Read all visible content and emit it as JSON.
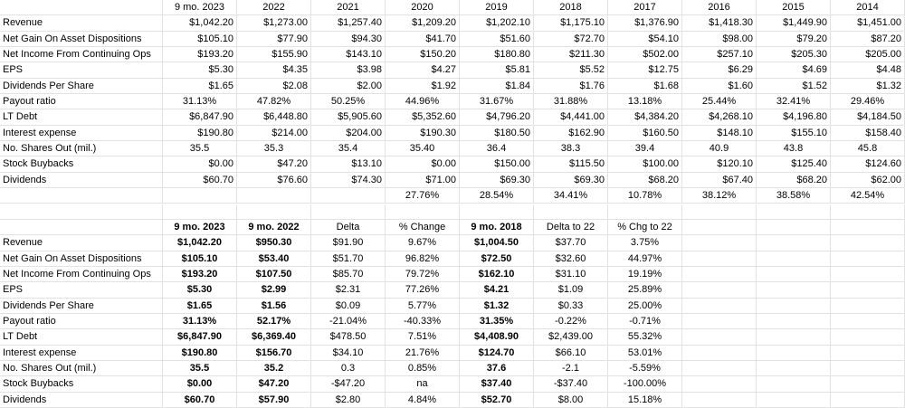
{
  "top_table": {
    "header": [
      "9 mo. 2023",
      "2022",
      "2021",
      "2020",
      "2019",
      "2018",
      "2017",
      "2016",
      "2015",
      "2014"
    ],
    "rows": [
      {
        "label": "Revenue",
        "cells": [
          "$1,042.20",
          "$1,273.00",
          "$1,257.40",
          "$1,209.20",
          "$1,202.10",
          "$1,175.10",
          "$1,376.90",
          "$1,418.30",
          "$1,449.90",
          "$1,451.00"
        ]
      },
      {
        "label": "Net Gain On Asset Dispositions",
        "cells": [
          "$105.10",
          "$77.90",
          "$94.30",
          "$41.70",
          "$51.60",
          "$72.70",
          "$54.10",
          "$98.00",
          "$79.20",
          "$87.20"
        ]
      },
      {
        "label": "Net Income From Continuing Ops",
        "cells": [
          "$193.20",
          "$155.90",
          "$143.10",
          "$150.20",
          "$180.80",
          "$211.30",
          "$502.00",
          "$257.10",
          "$205.30",
          "$205.00"
        ]
      },
      {
        "label": "EPS",
        "cells": [
          "$5.30",
          "$4.35",
          "$3.98",
          "$4.27",
          "$5.81",
          "$5.52",
          "$12.75",
          "$6.29",
          "$4.69",
          "$4.48"
        ]
      },
      {
        "label": "Dividends Per Share",
        "cells": [
          "$1.65",
          "$2.08",
          "$2.00",
          "$1.92",
          "$1.84",
          "$1.76",
          "$1.68",
          "$1.60",
          "$1.52",
          "$1.32"
        ]
      },
      {
        "label": "Payout ratio",
        "cells": [
          "31.13%",
          "47.82%",
          "50.25%",
          "44.96%",
          "31.67%",
          "31.88%",
          "13.18%",
          "25.44%",
          "32.41%",
          "29.46%"
        ]
      },
      {
        "label": "LT Debt",
        "cells": [
          "$6,847.90",
          "$6,448.80",
          "$5,905.60",
          "$5,352.60",
          "$4,796.20",
          "$4,441.00",
          "$4,384.20",
          "$4,268.10",
          "$4,196.80",
          "$4,184.50"
        ]
      },
      {
        "label": "Interest expense",
        "cells": [
          "$190.80",
          "$214.00",
          "$204.00",
          "$190.30",
          "$180.50",
          "$162.90",
          "$160.50",
          "$148.10",
          "$155.10",
          "$158.40"
        ]
      },
      {
        "label": "No. Shares Out (mil.)",
        "cells": [
          "35.5",
          "35.3",
          "35.4",
          "35.40",
          "36.4",
          "38.3",
          "39.4",
          "40.9",
          "43.8",
          "45.8"
        ]
      },
      {
        "label": "Stock Buybacks",
        "cells": [
          "$0.00",
          "$47.20",
          "$13.10",
          "$0.00",
          "$150.00",
          "$115.50",
          "$100.00",
          "$120.10",
          "$125.40",
          "$124.60"
        ]
      },
      {
        "label": "Dividends",
        "cells": [
          "$60.70",
          "$76.60",
          "$74.30",
          "$71.00",
          "$69.30",
          "$69.30",
          "$68.20",
          "$67.40",
          "$68.20",
          "$62.00"
        ]
      }
    ],
    "extra_row": [
      null,
      null,
      null,
      "27.76%",
      "28.54%",
      "34.41%",
      "10.78%",
      "38.12%",
      "38.58%",
      "42.54%"
    ]
  },
  "bottom_table": {
    "header": [
      "9 mo. 2023",
      "9 mo. 2022",
      "Delta",
      "% Change",
      "9 mo. 2018",
      "Delta to 22",
      "% Chg to 22"
    ],
    "rows": [
      {
        "label": "Revenue",
        "cells": [
          "$1,042.20",
          "$950.30",
          "$91.90",
          "9.67%",
          "$1,004.50",
          "$37.70",
          "3.75%"
        ]
      },
      {
        "label": "Net Gain On Asset Dispositions",
        "cells": [
          "$105.10",
          "$53.40",
          "$51.70",
          "96.82%",
          "$72.50",
          "$32.60",
          "44.97%"
        ]
      },
      {
        "label": "Net Income From Continuing Ops",
        "cells": [
          "$193.20",
          "$107.50",
          "$85.70",
          "79.72%",
          "$162.10",
          "$31.10",
          "19.19%"
        ]
      },
      {
        "label": "EPS",
        "cells": [
          "$5.30",
          "$2.99",
          "$2.31",
          "77.26%",
          "$4.21",
          "$1.09",
          "25.89%"
        ]
      },
      {
        "label": "Dividends Per Share",
        "cells": [
          "$1.65",
          "$1.56",
          "$0.09",
          "5.77%",
          "$1.32",
          "$0.33",
          "25.00%"
        ]
      },
      {
        "label": "Payout ratio",
        "cells": [
          "31.13%",
          "52.17%",
          "-21.04%",
          "-40.33%",
          "31.35%",
          "-0.22%",
          "-0.71%"
        ]
      },
      {
        "label": "LT Debt",
        "cells": [
          "$6,847.90",
          "$6,369.40",
          "$478.50",
          "7.51%",
          "$4,408.90",
          "$2,439.00",
          "55.32%"
        ]
      },
      {
        "label": "Interest expense",
        "cells": [
          "$190.80",
          "$156.70",
          "$34.10",
          "21.76%",
          "$124.70",
          "$66.10",
          "53.01%"
        ]
      },
      {
        "label": "No. Shares Out (mil.)",
        "cells": [
          "35.5",
          "35.2",
          "0.3",
          "0.85%",
          "37.6",
          "-2.1",
          "-5.59%"
        ]
      },
      {
        "label": "Stock Buybacks",
        "cells": [
          "$0.00",
          "$47.20",
          "-$47.20",
          "na",
          "$37.40",
          "-$37.40",
          "-100.00%"
        ]
      },
      {
        "label": "Dividends",
        "cells": [
          "$60.70",
          "$57.90",
          "$2.80",
          "4.84%",
          "$52.70",
          "$8.00",
          "15.18%"
        ]
      }
    ]
  }
}
